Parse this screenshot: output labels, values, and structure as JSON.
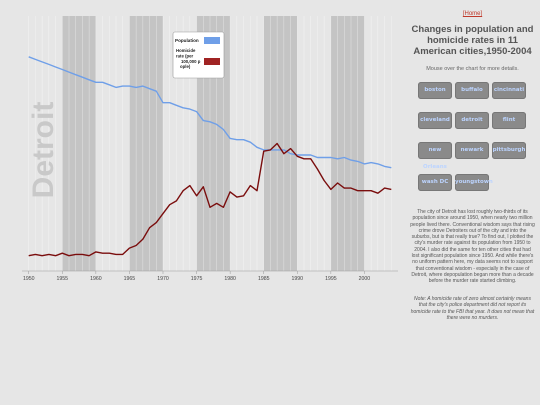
{
  "chart_data": {
    "type": "line",
    "title": "Detroit",
    "xlabel": "",
    "ylabel": "",
    "xlim": [
      1949,
      2005
    ],
    "x_ticks": [
      1950,
      1955,
      1960,
      1965,
      1970,
      1975,
      1980,
      1985,
      1990,
      1995,
      2000
    ],
    "grid": true,
    "shaded_bands": [
      [
        1955,
        1960
      ],
      [
        1965,
        1970
      ],
      [
        1975,
        1980
      ],
      [
        1985,
        1990
      ],
      [
        1995,
        2000
      ]
    ],
    "legend_position": "top-center",
    "series": [
      {
        "name": "Population",
        "color": "#6f9fe8",
        "x": [
          1950,
          1951,
          1952,
          1953,
          1954,
          1955,
          1956,
          1957,
          1958,
          1959,
          1960,
          1961,
          1962,
          1963,
          1964,
          1965,
          1966,
          1967,
          1968,
          1969,
          1970,
          1971,
          1972,
          1973,
          1974,
          1975,
          1976,
          1977,
          1978,
          1979,
          1980,
          1981,
          1982,
          1983,
          1984,
          1985,
          1986,
          1987,
          1988,
          1989,
          1990,
          1991,
          1992,
          1993,
          1994,
          1995,
          1996,
          1997,
          1998,
          1999,
          2000,
          2001,
          2002,
          2003,
          2004
        ],
        "values": [
          84,
          83,
          82,
          81,
          80,
          79,
          78,
          77,
          76,
          75,
          74,
          74,
          73,
          72,
          72.5,
          72.5,
          72,
          72.5,
          71.5,
          70.5,
          66,
          66,
          65,
          64,
          63.5,
          62.5,
          59,
          58.5,
          57.5,
          55.5,
          52,
          51.5,
          51.5,
          50.5,
          48.5,
          47.5,
          47.5,
          47.5,
          47.5,
          46,
          45.5,
          45.5,
          45.5,
          44.5,
          44.5,
          44.5,
          44,
          44.5,
          43.5,
          43,
          42,
          42.5,
          42,
          41,
          40.5
        ]
      },
      {
        "name": "Homicide rate (per 100,000 people)",
        "color": "#7a0d0d",
        "x": [
          1950,
          1951,
          1952,
          1953,
          1954,
          1955,
          1956,
          1957,
          1958,
          1959,
          1960,
          1961,
          1962,
          1963,
          1964,
          1965,
          1966,
          1967,
          1968,
          1969,
          1970,
          1971,
          1972,
          1973,
          1974,
          1975,
          1976,
          1977,
          1978,
          1979,
          1980,
          1981,
          1982,
          1983,
          1984,
          1985,
          1986,
          1987,
          1988,
          1989,
          1990,
          1991,
          1992,
          1993,
          1994,
          1995,
          1996,
          1997,
          1998,
          1999,
          2000,
          2001,
          2002,
          2003,
          2004
        ],
        "values": [
          6,
          6.5,
          6,
          6.5,
          6,
          7,
          6,
          6.5,
          6.5,
          6,
          7.5,
          7,
          7,
          6.5,
          6.5,
          9,
          10,
          12.5,
          17,
          19,
          22.5,
          26,
          27.5,
          31.5,
          33.5,
          29.5,
          33,
          25,
          26.5,
          25,
          31,
          29,
          29.5,
          33.5,
          31.5,
          47,
          47.5,
          50,
          46,
          48,
          45,
          44,
          44,
          40,
          35.5,
          32,
          34.5,
          32.5,
          32.5,
          31.5,
          31.5,
          31.5,
          30.5,
          32.5,
          32
        ]
      }
    ]
  },
  "nav": {
    "home_label": "[Home]"
  },
  "page_title": "Changes in population and homicide rates in 11 American cities,1950-2004",
  "instructions": "Mouse over the chart for more details.",
  "cities": [
    "boston",
    "buffalo",
    "cincinnati",
    "cleveland",
    "detroit",
    "flint",
    "new Orleans",
    "newark",
    "pittsburgh",
    "wash DC",
    "youngstown"
  ],
  "description": "The city of Detroit has lost roughly two-thirds of its population since around 1950, when nearly two million people lived there. Conventional wisdom says that rising crime drove Detroiters out of the city and into the suburbs, but is that really true? To find out, I plotted the city's murder rate against its population from 1950 to 2004. I also did the same for ten other cities that had lost significant population since 1950. And while there's no uniform pattern here, my data seems not to support that conventional wisdom - especially in the case of Detroit, where depopulation began more than a decade before the murder rate started climbing.",
  "note": "Note: A homicide rate of zero almost certainly means that the city's police department did not report its homicide rate to the FBI that year. It does not mean that there were no murders."
}
